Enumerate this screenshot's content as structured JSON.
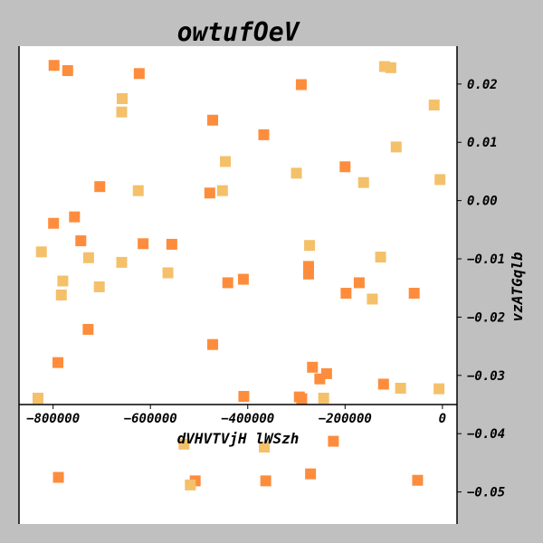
{
  "chart_data": {
    "type": "scatter",
    "title": "owtufOeV",
    "xlabel": "dVHVTVjH lWSzh",
    "ylabel": "vzATGqlb",
    "xlim": [
      -870000,
      30000
    ],
    "ylim": [
      -0.0555,
      0.0265
    ],
    "x_ticks": [
      -800000,
      -600000,
      -400000,
      -200000,
      0
    ],
    "x_tick_labels": [
      "−800000",
      "−600000",
      "−400000",
      "−200000",
      "0"
    ],
    "y_ticks": [
      0.02,
      0.01,
      0.0,
      -0.01,
      -0.02,
      -0.03,
      -0.04,
      -0.05
    ],
    "y_tick_labels": [
      "0.02",
      "0.01",
      "0.00",
      "−0.01",
      "−0.02",
      "−0.03",
      "−0.04",
      "−0.05"
    ],
    "x_axis_position_y": -0.035,
    "grid": false,
    "marker": "square",
    "colors": {
      "dark": "#fd8d3c",
      "light": "#f4c06a",
      "plot_bg": "#ffffff",
      "figure_bg": "#c0c0c0"
    },
    "points": [
      {
        "x": -798000,
        "y": 0.0232,
        "c": "dark"
      },
      {
        "x": -770000,
        "y": 0.0223,
        "c": "dark"
      },
      {
        "x": -623000,
        "y": 0.0218,
        "c": "dark"
      },
      {
        "x": -658000,
        "y": 0.0175,
        "c": "light"
      },
      {
        "x": -659000,
        "y": 0.0152,
        "c": "light"
      },
      {
        "x": -472000,
        "y": 0.0138,
        "c": "dark"
      },
      {
        "x": -367000,
        "y": 0.0113,
        "c": "dark"
      },
      {
        "x": -290000,
        "y": 0.0199,
        "c": "dark"
      },
      {
        "x": -119000,
        "y": 0.023,
        "c": "light"
      },
      {
        "x": -106000,
        "y": 0.0228,
        "c": "light"
      },
      {
        "x": -17000,
        "y": 0.0164,
        "c": "light"
      },
      {
        "x": -95000,
        "y": 0.0092,
        "c": "light"
      },
      {
        "x": -5000,
        "y": 0.0036,
        "c": "light"
      },
      {
        "x": -162000,
        "y": 0.0031,
        "c": "light"
      },
      {
        "x": -200000,
        "y": 0.0058,
        "c": "dark"
      },
      {
        "x": -300000,
        "y": 0.0047,
        "c": "light"
      },
      {
        "x": -446000,
        "y": 0.0067,
        "c": "light"
      },
      {
        "x": -704000,
        "y": 0.0024,
        "c": "dark"
      },
      {
        "x": -625000,
        "y": 0.0017,
        "c": "light"
      },
      {
        "x": -478000,
        "y": 0.0013,
        "c": "dark"
      },
      {
        "x": -452000,
        "y": 0.0017,
        "c": "light"
      },
      {
        "x": -799000,
        "y": -0.0039,
        "c": "dark"
      },
      {
        "x": -756000,
        "y": -0.0028,
        "c": "dark"
      },
      {
        "x": -743000,
        "y": -0.0069,
        "c": "dark"
      },
      {
        "x": -824000,
        "y": -0.0088,
        "c": "light"
      },
      {
        "x": -727000,
        "y": -0.0098,
        "c": "light"
      },
      {
        "x": -659000,
        "y": -0.0106,
        "c": "light"
      },
      {
        "x": -615000,
        "y": -0.0074,
        "c": "dark"
      },
      {
        "x": -556000,
        "y": -0.0075,
        "c": "dark"
      },
      {
        "x": -564000,
        "y": -0.0124,
        "c": "light"
      },
      {
        "x": -780000,
        "y": -0.0138,
        "c": "light"
      },
      {
        "x": -783000,
        "y": -0.0162,
        "c": "light"
      },
      {
        "x": -705000,
        "y": -0.0148,
        "c": "light"
      },
      {
        "x": -441000,
        "y": -0.0141,
        "c": "dark"
      },
      {
        "x": -409000,
        "y": -0.0135,
        "c": "dark"
      },
      {
        "x": -273000,
        "y": -0.0077,
        "c": "light"
      },
      {
        "x": -275000,
        "y": -0.0113,
        "c": "dark"
      },
      {
        "x": -275000,
        "y": -0.0126,
        "c": "dark"
      },
      {
        "x": -198000,
        "y": -0.0159,
        "c": "dark"
      },
      {
        "x": -171000,
        "y": -0.0141,
        "c": "dark"
      },
      {
        "x": -144000,
        "y": -0.0169,
        "c": "light"
      },
      {
        "x": -127000,
        "y": -0.0097,
        "c": "light"
      },
      {
        "x": -58000,
        "y": -0.0159,
        "c": "dark"
      },
      {
        "x": -728000,
        "y": -0.0221,
        "c": "dark"
      },
      {
        "x": -472000,
        "y": -0.0247,
        "c": "dark"
      },
      {
        "x": -790000,
        "y": -0.0278,
        "c": "dark"
      },
      {
        "x": -267000,
        "y": -0.0286,
        "c": "dark"
      },
      {
        "x": -238000,
        "y": -0.0297,
        "c": "dark"
      },
      {
        "x": -252000,
        "y": -0.0306,
        "c": "dark"
      },
      {
        "x": -121000,
        "y": -0.0315,
        "c": "dark"
      },
      {
        "x": -86000,
        "y": -0.0322,
        "c": "light"
      },
      {
        "x": -7000,
        "y": -0.0323,
        "c": "light"
      },
      {
        "x": -831000,
        "y": -0.0339,
        "c": "light"
      },
      {
        "x": -408000,
        "y": -0.0336,
        "c": "dark"
      },
      {
        "x": -294000,
        "y": -0.0337,
        "c": "dark"
      },
      {
        "x": -289000,
        "y": -0.034,
        "c": "dark"
      },
      {
        "x": -244000,
        "y": -0.0339,
        "c": "light"
      },
      {
        "x": -531000,
        "y": -0.0418,
        "c": "light"
      },
      {
        "x": -366000,
        "y": -0.0423,
        "c": "light"
      },
      {
        "x": -224000,
        "y": -0.0413,
        "c": "dark"
      },
      {
        "x": -789000,
        "y": -0.0475,
        "c": "dark"
      },
      {
        "x": -508000,
        "y": -0.0481,
        "c": "dark"
      },
      {
        "x": -518000,
        "y": -0.0488,
        "c": "light"
      },
      {
        "x": -363000,
        "y": -0.0481,
        "c": "dark"
      },
      {
        "x": -271000,
        "y": -0.0469,
        "c": "dark"
      },
      {
        "x": -51000,
        "y": -0.048,
        "c": "dark"
      }
    ]
  }
}
